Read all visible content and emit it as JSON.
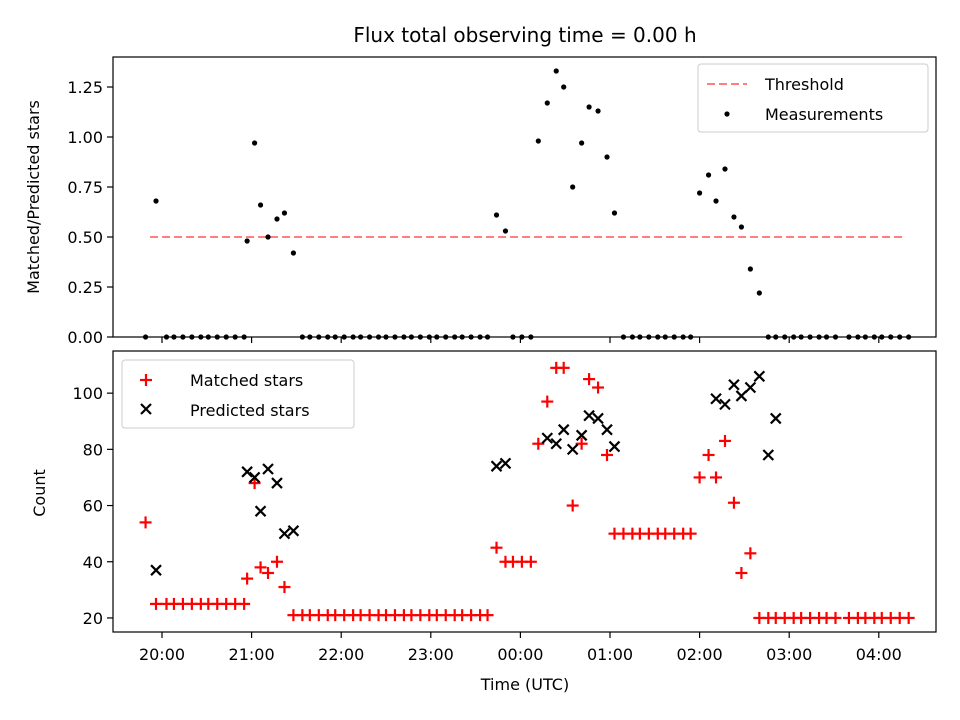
{
  "chart_data": [
    {
      "type": "scatter",
      "title": "Flux total observing time = 0.00 h",
      "xlabel": "",
      "ylabel": "Matched/Predicted stars",
      "ylim": [
        0,
        1.4
      ],
      "yticks": [
        0.0,
        0.25,
        0.5,
        0.75,
        1.0,
        1.25
      ],
      "ytick_labels": [
        "0.00",
        "0.25",
        "0.50",
        "0.75",
        "1.00",
        "1.25"
      ],
      "legend": {
        "placement": "top-right",
        "entries": [
          "Threshold",
          "Measurements"
        ]
      },
      "threshold": {
        "name": "Threshold",
        "value": 0.5,
        "x_start": "19:52",
        "x_end": "04:16",
        "color": "#ff7f7f"
      },
      "series": [
        {
          "name": "Measurements",
          "color": "#000000",
          "x": [
            "19:49",
            "19:56",
            "20:03",
            "20:08",
            "20:14",
            "20:20",
            "20:26",
            "20:31",
            "20:37",
            "20:43",
            "20:49",
            "20:55",
            "20:57",
            "21:02",
            "21:06",
            "21:11",
            "21:17",
            "21:22",
            "21:28",
            "21:34",
            "21:39",
            "21:45",
            "21:51",
            "21:56",
            "22:02",
            "22:08",
            "22:13",
            "22:19",
            "22:25",
            "22:30",
            "22:36",
            "22:42",
            "22:47",
            "22:53",
            "22:59",
            "23:04",
            "23:10",
            "23:16",
            "23:21",
            "23:27",
            "23:33",
            "23:38",
            "23:44",
            "23:50",
            "23:55",
            "00:01",
            "00:07",
            "00:12",
            "00:18",
            "00:24",
            "00:29",
            "00:35",
            "00:41",
            "00:46",
            "00:52",
            "00:58",
            "01:03",
            "01:09",
            "01:15",
            "01:20",
            "01:26",
            "01:32",
            "01:37",
            "01:43",
            "01:49",
            "01:54",
            "02:00",
            "02:06",
            "02:11",
            "02:17",
            "02:23",
            "02:28",
            "02:34",
            "02:40",
            "02:46",
            "02:51",
            "02:57",
            "03:03",
            "03:08",
            "03:14",
            "03:20",
            "03:25",
            "03:31",
            "03:40",
            "03:46",
            "03:51",
            "03:57",
            "04:02",
            "04:08",
            "04:14",
            "04:20"
          ],
          "y": [
            0,
            0.68,
            0,
            0,
            0,
            0,
            0,
            0,
            0,
            0,
            0,
            0,
            0.48,
            0.97,
            0.66,
            0.5,
            0.59,
            0.62,
            0.42,
            0,
            0,
            0,
            0,
            0,
            0,
            0,
            0,
            0,
            0,
            0,
            0,
            0,
            0,
            0,
            0,
            0,
            0,
            0,
            0,
            0,
            0,
            0,
            0.61,
            0.53,
            0,
            0,
            0,
            0.98,
            1.17,
            1.33,
            1.25,
            0.75,
            0.97,
            1.15,
            1.13,
            0.9,
            0.62,
            0,
            0,
            0,
            0,
            0,
            0,
            0,
            0,
            0,
            0.72,
            0.81,
            0.68,
            0.84,
            0.6,
            0.55,
            0.34,
            0.22,
            0,
            0,
            0,
            0,
            0,
            0,
            0,
            0,
            0,
            0,
            0,
            0,
            0,
            0,
            0,
            0,
            0
          ]
        }
      ]
    },
    {
      "type": "scatter",
      "title": "",
      "xlabel": "Time (UTC)",
      "ylabel": "Count",
      "ylim": [
        15,
        115
      ],
      "yticks": [
        20,
        40,
        60,
        80,
        100
      ],
      "ytick_labels": [
        "20",
        "40",
        "60",
        "80",
        "100"
      ],
      "xtick_labels": [
        "20:00",
        "21:00",
        "22:00",
        "23:00",
        "00:00",
        "01:00",
        "02:00",
        "03:00",
        "04:00"
      ],
      "legend": {
        "placement": "top-left",
        "entries": [
          "Matched stars",
          "Predicted stars"
        ]
      },
      "series": [
        {
          "name": "Matched stars",
          "color": "#ff0000",
          "marker": "+",
          "x": [
            "19:49",
            "19:56",
            "20:03",
            "20:08",
            "20:14",
            "20:20",
            "20:26",
            "20:31",
            "20:37",
            "20:43",
            "20:49",
            "20:55",
            "20:57",
            "21:02",
            "21:06",
            "21:11",
            "21:17",
            "21:22",
            "21:28",
            "21:34",
            "21:39",
            "21:45",
            "21:51",
            "21:56",
            "22:02",
            "22:08",
            "22:13",
            "22:19",
            "22:25",
            "22:30",
            "22:36",
            "22:42",
            "22:47",
            "22:53",
            "22:59",
            "23:04",
            "23:10",
            "23:16",
            "23:21",
            "23:27",
            "23:33",
            "23:38",
            "23:44",
            "23:50",
            "23:55",
            "00:01",
            "00:07",
            "00:12",
            "00:18",
            "00:24",
            "00:29",
            "00:35",
            "00:41",
            "00:46",
            "00:52",
            "00:58",
            "01:03",
            "01:09",
            "01:15",
            "01:20",
            "01:26",
            "01:32",
            "01:37",
            "01:43",
            "01:49",
            "01:54",
            "02:00",
            "02:06",
            "02:11",
            "02:17",
            "02:23",
            "02:28",
            "02:34",
            "02:40",
            "02:46",
            "02:51",
            "02:57",
            "03:03",
            "03:08",
            "03:14",
            "03:20",
            "03:25",
            "03:31",
            "03:40",
            "03:46",
            "03:51",
            "03:57",
            "04:02",
            "04:08",
            "04:14",
            "04:20"
          ],
          "y": [
            54,
            25,
            25,
            25,
            25,
            25,
            25,
            25,
            25,
            25,
            25,
            25,
            34,
            68,
            38,
            36,
            40,
            31,
            21,
            21,
            21,
            21,
            21,
            21,
            21,
            21,
            21,
            21,
            21,
            21,
            21,
            21,
            21,
            21,
            21,
            21,
            21,
            21,
            21,
            21,
            21,
            21,
            45,
            40,
            40,
            40,
            40,
            82,
            97,
            109,
            109,
            60,
            82,
            105,
            102,
            78,
            50,
            50,
            50,
            50,
            50,
            50,
            50,
            50,
            50,
            50,
            70,
            78,
            70,
            83,
            61,
            36,
            43,
            20,
            20,
            20,
            20,
            20,
            20,
            20,
            20,
            20,
            20,
            20,
            20,
            20,
            20,
            20,
            20,
            20,
            20
          ]
        },
        {
          "name": "Predicted stars",
          "color": "#000000",
          "marker": "x",
          "x": [
            "19:56",
            "20:57",
            "21:02",
            "21:06",
            "21:11",
            "21:17",
            "21:22",
            "21:28",
            "23:44",
            "23:50",
            "00:18",
            "00:24",
            "00:29",
            "00:35",
            "00:41",
            "00:46",
            "00:52",
            "00:58",
            "01:03",
            "02:11",
            "02:17",
            "02:23",
            "02:28",
            "02:34",
            "02:40",
            "02:46",
            "02:51"
          ],
          "y": [
            37,
            72,
            70,
            58,
            73,
            68,
            50,
            51,
            74,
            75,
            84,
            82,
            87,
            80,
            85,
            92,
            91,
            87,
            81,
            98,
            96,
            103,
            99,
            102,
            106,
            78,
            91
          ]
        }
      ]
    }
  ]
}
